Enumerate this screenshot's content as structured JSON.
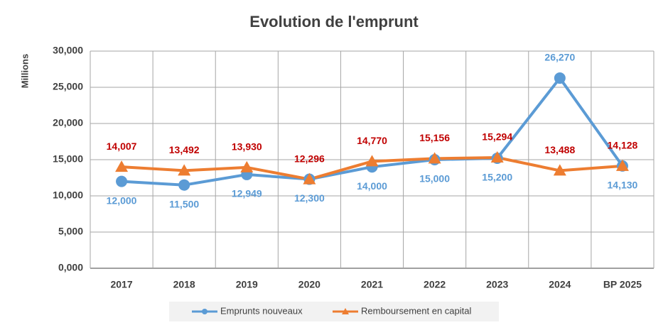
{
  "chart_data": {
    "type": "line",
    "title": "Evolution de l'emprunt",
    "y_label": "Millions",
    "categories": [
      "2017",
      "2018",
      "2019",
      "2020",
      "2021",
      "2022",
      "2023",
      "2024",
      "BP 2025"
    ],
    "series": [
      {
        "name": "Emprunts nouveaux",
        "color": "#5b9bd5",
        "label_color": "#5b9bd5",
        "values": [
          12000,
          11500,
          12949,
          12300,
          14000,
          15000,
          15200,
          26270,
          14130
        ],
        "value_labels": [
          "12,000",
          "11,500",
          "12,949",
          "12,300",
          "14,000",
          "15,000",
          "15,200",
          "26,270",
          "14,130"
        ],
        "marker": "circle"
      },
      {
        "name": "Remboursement en capital",
        "color": "#ed7d31",
        "label_color": "#c00000",
        "values": [
          14007,
          13492,
          13930,
          12296,
          14770,
          15156,
          15294,
          13488,
          14128
        ],
        "value_labels": [
          "14,007",
          "13,492",
          "13,930",
          "12,296",
          "14,770",
          "15,156",
          "15,294",
          "13,488",
          "14,128"
        ],
        "marker": "triangle"
      }
    ],
    "ylim": [
      0,
      30000
    ],
    "yticks": [
      {
        "value": 0,
        "label": "0,000"
      },
      {
        "value": 5000,
        "label": "5,000"
      },
      {
        "value": 10000,
        "label": "10,000"
      },
      {
        "value": 15000,
        "label": "15,000"
      },
      {
        "value": 20000,
        "label": "20,000"
      },
      {
        "value": 25000,
        "label": "25,000"
      },
      {
        "value": 30000,
        "label": "30,000"
      }
    ],
    "grid": true,
    "legend": "bottom"
  }
}
